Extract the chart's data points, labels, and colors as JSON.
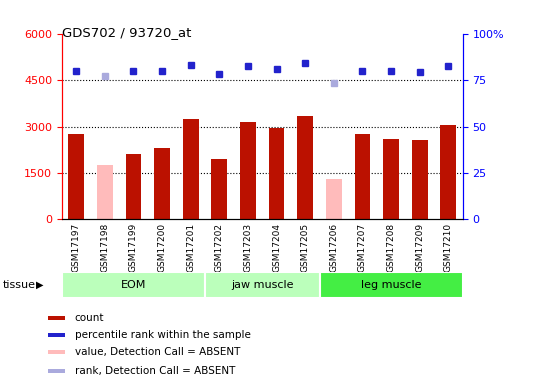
{
  "title": "GDS702 / 93720_at",
  "samples": [
    "GSM17197",
    "GSM17198",
    "GSM17199",
    "GSM17200",
    "GSM17201",
    "GSM17202",
    "GSM17203",
    "GSM17204",
    "GSM17205",
    "GSM17206",
    "GSM17207",
    "GSM17208",
    "GSM17209",
    "GSM17210"
  ],
  "bar_values": [
    2750,
    1750,
    2100,
    2300,
    3250,
    1950,
    3150,
    2950,
    3350,
    1300,
    2750,
    2600,
    2550,
    3050
  ],
  "bar_absent": [
    false,
    true,
    false,
    false,
    false,
    false,
    false,
    false,
    false,
    true,
    false,
    false,
    false,
    false
  ],
  "rank_values": [
    4800,
    4650,
    4800,
    4800,
    5000,
    4700,
    4950,
    4850,
    5050,
    4400,
    4800,
    4800,
    4750,
    4950
  ],
  "rank_absent": [
    false,
    true,
    false,
    false,
    false,
    false,
    false,
    false,
    false,
    true,
    false,
    false,
    false,
    false
  ],
  "ylim_left": [
    0,
    6000
  ],
  "ylim_right": [
    0,
    100
  ],
  "yticks_left": [
    0,
    1500,
    3000,
    4500,
    6000
  ],
  "ytick_labels_left": [
    "0",
    "1500",
    "3000",
    "4500",
    "6000"
  ],
  "yticks_right": [
    0,
    25,
    50,
    75,
    100
  ],
  "ytick_labels_right": [
    "0",
    "25",
    "50",
    "75",
    "100%"
  ],
  "bar_color_normal": "#bb1100",
  "bar_color_absent": "#ffbbbb",
  "rank_color_normal": "#2222cc",
  "rank_color_absent": "#aaaadd",
  "group_starts": [
    0,
    5,
    9
  ],
  "group_ends": [
    4,
    8,
    13
  ],
  "group_labels": [
    "EOM",
    "jaw muscle",
    "leg muscle"
  ],
  "group_colors": [
    "#bbffbb",
    "#bbffbb",
    "#44ee44"
  ],
  "tissue_label": "tissue",
  "legend_items": [
    {
      "label": "count",
      "color": "#bb1100"
    },
    {
      "label": "percentile rank within the sample",
      "color": "#2222cc"
    },
    {
      "label": "value, Detection Call = ABSENT",
      "color": "#ffbbbb"
    },
    {
      "label": "rank, Detection Call = ABSENT",
      "color": "#aaaadd"
    }
  ],
  "figsize": [
    5.38,
    3.75
  ],
  "dpi": 100
}
